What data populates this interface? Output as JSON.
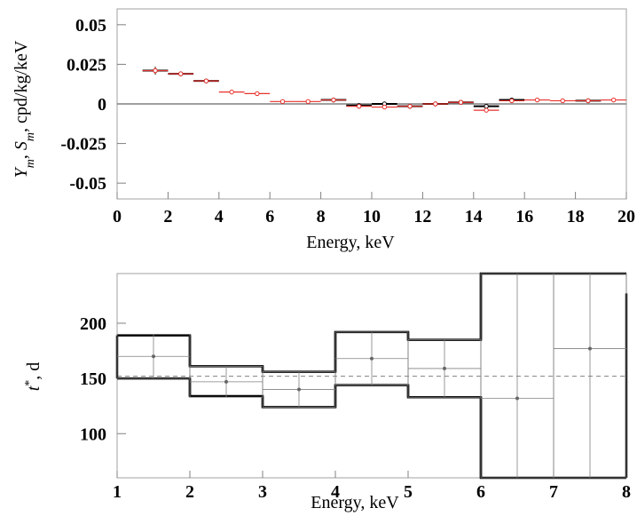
{
  "chart_data": [
    {
      "type": "scatter",
      "xlabel": "Energy, keV",
      "ylabel_parts": {
        "Y": "Y",
        "Ysub": "m",
        "sep": ", ",
        "S": "S",
        "Ssub": "m",
        "unit": ", cpd/kg/keV"
      },
      "xlim": [
        0,
        20
      ],
      "ylim": [
        -0.06,
        0.06
      ],
      "xticks": [
        0,
        2,
        4,
        6,
        8,
        10,
        12,
        14,
        16,
        18,
        20
      ],
      "yticks": [
        -0.05,
        -0.025,
        0,
        0.025,
        0.05
      ],
      "ytick_labels": [
        "-0.05",
        "-0.025",
        "0",
        "0.025",
        "0.05"
      ],
      "series": [
        {
          "color": "#000000",
          "points": [
            {
              "x": 1.5,
              "y": 0.021,
              "xlo": 1,
              "xhi": 2,
              "err": 0.0025
            },
            {
              "x": 2.5,
              "y": 0.019,
              "xlo": 2,
              "xhi": 3,
              "err": 0.0012
            },
            {
              "x": 3.5,
              "y": 0.0145,
              "xlo": 3,
              "xhi": 4,
              "err": 0.0012
            },
            {
              "x": 8.5,
              "y": 0.0025,
              "xlo": 8,
              "xhi": 9,
              "err": 0.001
            },
            {
              "x": 9.5,
              "y": -0.001,
              "xlo": 9,
              "xhi": 10,
              "err": 0.001
            },
            {
              "x": 10.5,
              "y": 0.0,
              "xlo": 10,
              "xhi": 11,
              "err": 0.001
            },
            {
              "x": 11.5,
              "y": -0.0015,
              "xlo": 11,
              "xhi": 12,
              "err": 0.001
            },
            {
              "x": 12.5,
              "y": 0.0,
              "xlo": 12,
              "xhi": 13,
              "err": 0.001
            },
            {
              "x": 13.5,
              "y": 0.001,
              "xlo": 13,
              "xhi": 14,
              "err": 0.001
            },
            {
              "x": 14.5,
              "y": -0.0015,
              "xlo": 14,
              "xhi": 15,
              "err": 0.001
            },
            {
              "x": 15.5,
              "y": 0.0025,
              "xlo": 15,
              "xhi": 16,
              "err": 0.001
            },
            {
              "x": 18.5,
              "y": 0.002,
              "xlo": 18,
              "xhi": 19,
              "err": 0.001
            }
          ]
        },
        {
          "color": "#e8302a",
          "points": [
            {
              "x": 1.5,
              "y": 0.021,
              "xlo": 1,
              "xhi": 2,
              "err": 0.0018
            },
            {
              "x": 2.5,
              "y": 0.019,
              "xlo": 2,
              "xhi": 3,
              "err": 0.001
            },
            {
              "x": 3.5,
              "y": 0.0145,
              "xlo": 3,
              "xhi": 4,
              "err": 0.001
            },
            {
              "x": 4.5,
              "y": 0.0075,
              "xlo": 4,
              "xhi": 5,
              "err": 0.001
            },
            {
              "x": 5.5,
              "y": 0.0065,
              "xlo": 5,
              "xhi": 6,
              "err": 0.0008
            },
            {
              "x": 6.5,
              "y": 0.0015,
              "xlo": 6,
              "xhi": 7,
              "err": 0.0008
            },
            {
              "x": 7.5,
              "y": 0.0015,
              "xlo": 7,
              "xhi": 8,
              "err": 0.0008
            },
            {
              "x": 8.5,
              "y": 0.0025,
              "xlo": 8,
              "xhi": 9,
              "err": 0.0008
            },
            {
              "x": 9.5,
              "y": -0.0015,
              "xlo": 9,
              "xhi": 10,
              "err": 0.0008
            },
            {
              "x": 10.5,
              "y": -0.002,
              "xlo": 10,
              "xhi": 11,
              "err": 0.0008
            },
            {
              "x": 11.5,
              "y": -0.0015,
              "xlo": 11,
              "xhi": 12,
              "err": 0.0008
            },
            {
              "x": 12.5,
              "y": 0.0,
              "xlo": 12,
              "xhi": 13,
              "err": 0.0008
            },
            {
              "x": 13.5,
              "y": 0.001,
              "xlo": 13,
              "xhi": 14,
              "err": 0.0008
            },
            {
              "x": 14.5,
              "y": -0.004,
              "xlo": 14,
              "xhi": 15,
              "err": 0.001
            },
            {
              "x": 15.5,
              "y": 0.002,
              "xlo": 15,
              "xhi": 16,
              "err": 0.0008
            },
            {
              "x": 16.5,
              "y": 0.0025,
              "xlo": 16,
              "xhi": 17,
              "err": 0.0008
            },
            {
              "x": 17.5,
              "y": 0.002,
              "xlo": 17,
              "xhi": 18,
              "err": 0.0008
            },
            {
              "x": 18.5,
              "y": 0.002,
              "xlo": 18,
              "xhi": 19,
              "err": 0.0008
            },
            {
              "x": 19.5,
              "y": 0.0025,
              "xlo": 19,
              "xhi": 20,
              "err": 0.0008
            }
          ]
        }
      ],
      "reference_line": {
        "y": 0,
        "color": "#808080"
      }
    },
    {
      "type": "scatter",
      "xlabel": "Energy, keV",
      "ylabel_parts": {
        "t": "t",
        "sup": "*",
        "unit": ", d"
      },
      "xlim": [
        1,
        8
      ],
      "ylim": [
        60,
        245
      ],
      "xticks": [
        1,
        2,
        3,
        4,
        5,
        6,
        7,
        8
      ],
      "yticks": [
        100,
        150,
        200
      ],
      "reference_line": {
        "y": 152,
        "style": "dashed",
        "color": "#808080"
      },
      "points": [
        {
          "x": 1.5,
          "y": 170,
          "xlo": 1,
          "xhi": 2,
          "err_lo": 20,
          "err_hi": 20
        },
        {
          "x": 2.5,
          "y": 147,
          "xlo": 2,
          "xhi": 3,
          "err_lo": 14,
          "err_hi": 14
        },
        {
          "x": 3.5,
          "y": 140,
          "xlo": 3,
          "xhi": 4,
          "err_lo": 16,
          "err_hi": 16
        },
        {
          "x": 4.5,
          "y": 168,
          "xlo": 4,
          "xhi": 5,
          "err_lo": 24,
          "err_hi": 24
        },
        {
          "x": 5.5,
          "y": 159,
          "xlo": 5,
          "xhi": 6,
          "err_lo": 26,
          "err_hi": 26
        },
        {
          "x": 6.5,
          "y": 132,
          "xlo": 6,
          "xhi": 7,
          "err_lo": 72,
          "err_hi": 113
        },
        {
          "x": 7.5,
          "y": 177,
          "xlo": 7,
          "xhi": 8,
          "err_lo": 117,
          "err_hi": 68
        }
      ],
      "band_upper": [
        189,
        161,
        156,
        192,
        185,
        245,
        245
      ],
      "band_lower": [
        150,
        134,
        124,
        144,
        133,
        60,
        60
      ],
      "band_edge_right": 227
    }
  ]
}
